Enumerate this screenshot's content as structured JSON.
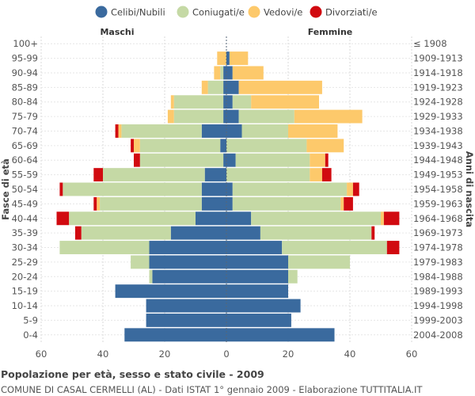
{
  "chart_data": {
    "type": "bar",
    "orientation": "horizontal-population-pyramid",
    "title": "Popolazione per età, sesso e stato civile - 2009",
    "subtitle": "COMUNE DI CASAL CERMELLI (AL) - Dati ISTAT 1° gennaio 2009 - Elaborazione TUTTITALIA.IT",
    "ylabel_left": "Fasce di età",
    "ylabel_right": "Anni di nascita",
    "left_label": "Maschi",
    "right_label": "Femmine",
    "xlim": [
      -60,
      60
    ],
    "xticks": [
      -60,
      -40,
      -20,
      0,
      20,
      40,
      60
    ],
    "xtick_labels": [
      "60",
      "40",
      "20",
      "0",
      "20",
      "40",
      "60"
    ],
    "categories": [
      "100+",
      "95-99",
      "90-94",
      "85-89",
      "80-84",
      "75-79",
      "70-74",
      "65-69",
      "60-64",
      "55-59",
      "50-54",
      "45-49",
      "40-44",
      "35-39",
      "30-34",
      "25-29",
      "20-24",
      "15-19",
      "10-14",
      "5-9",
      "0-4"
    ],
    "birth_years": [
      "≤ 1908",
      "1909-1913",
      "1914-1918",
      "1919-1923",
      "1924-1928",
      "1929-1933",
      "1934-1938",
      "1939-1943",
      "1944-1948",
      "1949-1953",
      "1954-1958",
      "1959-1963",
      "1964-1968",
      "1969-1973",
      "1974-1978",
      "1979-1983",
      "1984-1988",
      "1989-1993",
      "1994-1998",
      "1999-2003",
      "2004-2008"
    ],
    "legend": [
      {
        "name": "Celibi/Nubili",
        "color": "#3a6a9e"
      },
      {
        "name": "Coniugati/e",
        "color": "#c5d9a5"
      },
      {
        "name": "Vedovi/e",
        "color": "#fdc96b"
      },
      {
        "name": "Divorziati/e",
        "color": "#d10a10"
      }
    ],
    "series": [
      {
        "name": "Celibi/Nubili",
        "color": "#3a6a9e",
        "male": [
          0,
          0,
          1,
          1,
          1,
          1,
          8,
          2,
          1,
          7,
          8,
          8,
          10,
          18,
          25,
          25,
          24,
          36,
          26,
          26,
          33
        ],
        "female": [
          0,
          1,
          2,
          4,
          2,
          4,
          5,
          0,
          3,
          0,
          2,
          2,
          8,
          11,
          18,
          20,
          20,
          20,
          24,
          21,
          35
        ]
      },
      {
        "name": "Coniugati/e",
        "color": "#c5d9a5",
        "male": [
          0,
          0,
          1,
          5,
          16,
          16,
          26,
          26,
          27,
          33,
          45,
          33,
          41,
          29,
          29,
          6,
          1,
          0,
          0,
          0,
          0
        ],
        "female": [
          0,
          0,
          0,
          0,
          6,
          18,
          15,
          26,
          24,
          27,
          37,
          35,
          42,
          36,
          34,
          20,
          3,
          0,
          0,
          0,
          0
        ]
      },
      {
        "name": "Vedovi/e",
        "color": "#fdc96b",
        "male": [
          0,
          3,
          2,
          2,
          1,
          2,
          1,
          2,
          0,
          0,
          0,
          1,
          0,
          0,
          0,
          0,
          0,
          0,
          0,
          0,
          0
        ],
        "female": [
          0,
          6,
          10,
          27,
          22,
          22,
          16,
          12,
          5,
          4,
          2,
          1,
          1,
          0,
          0,
          0,
          0,
          0,
          0,
          0,
          0
        ]
      },
      {
        "name": "Divorziati/e",
        "color": "#d10a10",
        "male": [
          0,
          0,
          0,
          0,
          0,
          0,
          1,
          1,
          2,
          3,
          1,
          1,
          4,
          2,
          0,
          0,
          0,
          0,
          0,
          0,
          0
        ],
        "female": [
          0,
          0,
          0,
          0,
          0,
          0,
          0,
          0,
          1,
          3,
          2,
          3,
          5,
          1,
          4,
          0,
          0,
          0,
          0,
          0,
          0
        ]
      }
    ],
    "grid": true,
    "legend_position": "top"
  }
}
